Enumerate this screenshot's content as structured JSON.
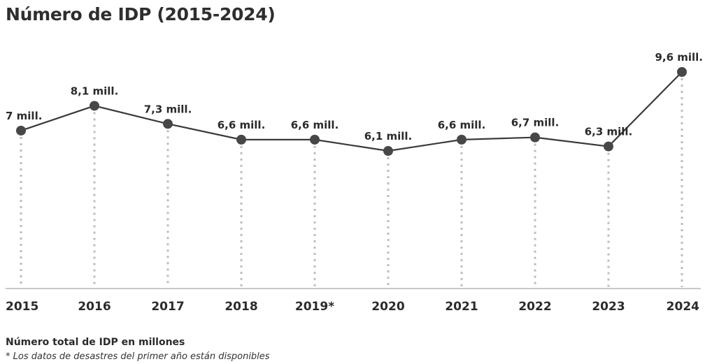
{
  "chart_data": {
    "type": "line",
    "title": "Número de IDP (2015-2024)",
    "categories": [
      "2015",
      "2016",
      "2017",
      "2018",
      "2019*",
      "2020",
      "2021",
      "2022",
      "2023",
      "2024"
    ],
    "values": [
      7,
      8.1,
      7.3,
      6.6,
      6.6,
      6.1,
      6.6,
      6.7,
      6.3,
      9.6
    ],
    "data_labels": [
      "7 mill.",
      "8,1 mill.",
      "7,3 mill.",
      "6,6 mill.",
      "6,6 mill.",
      "6,1 mill.",
      "6,6 mill.",
      "6,7 mill.",
      "6,3 mill.",
      "9,6 mill."
    ],
    "ylim": [
      0,
      9.6
    ],
    "grid": false,
    "line_color": "#3a3a3a",
    "marker_color": "#474747",
    "guide_color": "#bdbdbd"
  },
  "footnote": {
    "label": "Número total de IDP en millones",
    "note": "* Los datos de desastres del primer año están disponibles"
  }
}
